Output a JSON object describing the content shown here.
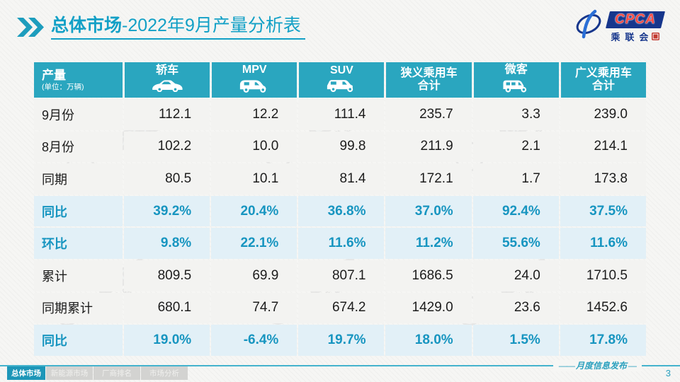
{
  "title": {
    "highlight": "总体市场",
    "rest": "-2022年9月产量分析表"
  },
  "logo": {
    "acronym": "CPCA",
    "name_cn": "乘联会"
  },
  "watermark": {
    "acronym": "CPCA",
    "name_cn": "乘联会"
  },
  "table": {
    "unit_label": "产量",
    "unit_sub": "(单位：万辆)",
    "columns": [
      {
        "label": "轿车",
        "icon": "sedan-icon"
      },
      {
        "label": "MPV",
        "icon": "mpv-icon"
      },
      {
        "label": "SUV",
        "icon": "suv-icon"
      },
      {
        "label": "狭义乘用车\n合计",
        "icon": ""
      },
      {
        "label": "微客",
        "icon": "microvan-icon"
      },
      {
        "label": "广义乘用车\n合计",
        "icon": ""
      }
    ],
    "rows": [
      {
        "label": "9月份",
        "type": "normal",
        "values": [
          "112.1",
          "12.2",
          "111.4",
          "235.7",
          "3.3",
          "239.0"
        ]
      },
      {
        "label": "8月份",
        "type": "normal",
        "values": [
          "102.2",
          "10.0",
          "99.8",
          "211.9",
          "2.1",
          "214.1"
        ]
      },
      {
        "label": "同期",
        "type": "normal",
        "values": [
          "80.5",
          "10.1",
          "81.4",
          "172.1",
          "1.7",
          "173.8"
        ]
      },
      {
        "label": "同比",
        "type": "highlight",
        "values": [
          "39.2%",
          "20.4%",
          "36.8%",
          "37.0%",
          "92.4%",
          "37.5%"
        ]
      },
      {
        "label": "环比",
        "type": "highlight",
        "values": [
          "9.8%",
          "22.1%",
          "11.6%",
          "11.2%",
          "55.6%",
          "11.6%"
        ]
      },
      {
        "label": "累计",
        "type": "normal",
        "values": [
          "809.5",
          "69.9",
          "807.1",
          "1686.5",
          "24.0",
          "1710.5"
        ]
      },
      {
        "label": "同期累计",
        "type": "normal",
        "values": [
          "680.1",
          "74.7",
          "674.2",
          "1429.0",
          "23.6",
          "1452.6"
        ]
      },
      {
        "label": "同比",
        "type": "highlight",
        "values": [
          "19.0%",
          "-6.4%",
          "19.7%",
          "18.0%",
          "1.5%",
          "17.8%"
        ]
      }
    ]
  },
  "footer": {
    "tabs": [
      {
        "label": "总体市场",
        "active": true
      },
      {
        "label": "新能源市场",
        "active": false
      },
      {
        "label": "厂商排名",
        "active": false
      },
      {
        "label": "市场分析",
        "active": false
      }
    ],
    "publication": "月度信息发布",
    "page": "3"
  },
  "colors": {
    "accent": "#2aa6bf",
    "accent_dark": "#1d96b8",
    "title": "#12a0c6",
    "percent_text": "#1795c0",
    "highlight_row_bg": "#e2f0f7"
  }
}
